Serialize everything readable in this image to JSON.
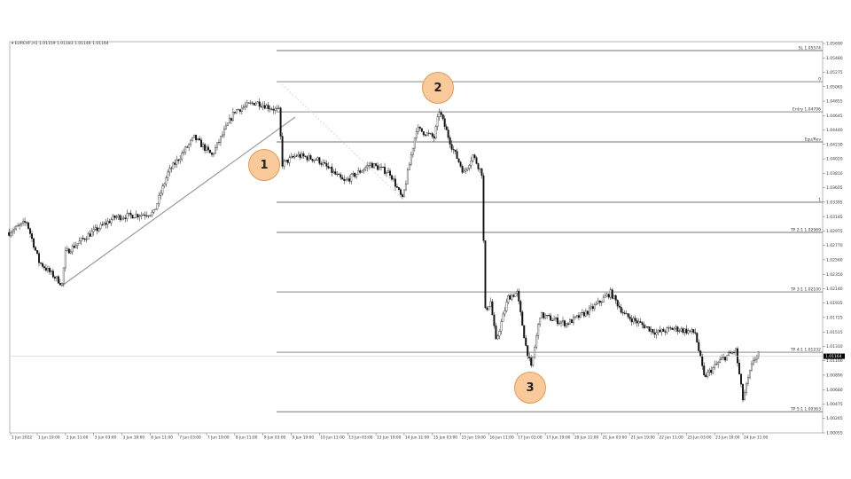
{
  "header": {
    "symbol_caret": "▾",
    "info": "EURCHF,H1  1.01159 1.01183 1.01146 1.01164"
  },
  "markers": [
    {
      "label": "1"
    },
    {
      "label": "2"
    },
    {
      "label": "3"
    }
  ],
  "colors": {
    "candle": "#111111",
    "level_line": "#444444",
    "trendline": "#9a9a9a",
    "marker_fill": "#f9c99a",
    "marker_border": "#e39a55",
    "price_tag_bg": "#000000"
  },
  "chart_data": {
    "type": "candlestick",
    "symbol": "EURCHF",
    "timeframe": "H1",
    "current_price": "1.01164",
    "ylim": [
      1.00055,
      1.0569
    ],
    "y_ticks": [
      "1.05690",
      "1.05480",
      "1.05275",
      "1.05065",
      "1.04855",
      "1.04645",
      "1.04440",
      "1.04230",
      "1.04020",
      "1.03810",
      "1.03605",
      "1.03395",
      "1.03185",
      "1.02975",
      "1.02770",
      "1.02560",
      "1.02350",
      "1.02140",
      "1.01935",
      "1.01725",
      "1.01515",
      "1.01310",
      "1.01100",
      "1.00890",
      "1.00680",
      "1.00475",
      "1.00265",
      "1.00055"
    ],
    "x_ticks": [
      "1 Jun 2022",
      "1 Jun 19:00",
      "2 Jun 11:00",
      "3 Jun 03:00",
      "3 Jun 19:00",
      "6 Jun 11:00",
      "7 Jun 03:00",
      "7 Jun 19:00",
      "8 Jun 11:00",
      "9 Jun 03:00",
      "9 Jun 19:00",
      "10 Jun 11:00",
      "13 Jun 03:00",
      "13 Jun 19:00",
      "14 Jun 11:00",
      "15 Jun 03:00",
      "15 Jun 19:00",
      "16 Jun 11:00",
      "17 Jun 03:00",
      "17 Jun 19:00",
      "20 Jun 11:00",
      "21 Jun 03:00",
      "21 Jun 19:00",
      "22 Jun 11:00",
      "23 Jun 03:00",
      "23 Jun 19:00",
      "24 Jun 11:00"
    ],
    "price_path": [
      [
        "1 Jun 03:00",
        1.02956
      ],
      [
        "1 Jun 13:00",
        1.03109
      ],
      [
        "1 Jun 20:00",
        1.02531
      ],
      [
        "2 Jun 09:00",
        1.0221
      ],
      [
        "2 Jun 11:00",
        1.0266
      ],
      [
        "3 Jun 00:00",
        1.02917
      ],
      [
        "3 Jun 15:00",
        1.03173
      ],
      [
        "6 Jun 13:00",
        1.03238
      ],
      [
        "6 Jun 21:00",
        1.03815
      ],
      [
        "7 Jun 12:00",
        1.04329
      ],
      [
        "7 Jun 22:00",
        1.04072
      ],
      [
        "8 Jun 11:00",
        1.04714
      ],
      [
        "8 Jun 23:00",
        1.04843
      ],
      [
        "9 Jun 12:00",
        1.04714
      ],
      [
        "9 Jun 14:00",
        1.03944
      ],
      [
        "9 Jun 22:00",
        1.04072
      ],
      [
        "10 Jun 10:00",
        1.04008
      ],
      [
        "13 Jun 01:00",
        1.03687
      ],
      [
        "13 Jun 16:00",
        1.03944
      ],
      [
        "14 Jun 03:00",
        1.03815
      ],
      [
        "14 Jun 10:00",
        1.0343
      ],
      [
        "14 Jun 18:00",
        1.04457
      ],
      [
        "15 Jun 04:00",
        1.04329
      ],
      [
        "15 Jun 07:00",
        1.04714
      ],
      [
        "15 Jun 14:00",
        1.04201
      ],
      [
        "15 Jun 21:00",
        1.03815
      ],
      [
        "16 Jun 02:00",
        1.04072
      ],
      [
        "16 Jun 07:00",
        1.03815
      ],
      [
        "16 Jun 09:00",
        1.01825
      ],
      [
        "16 Jun 12:00",
        1.01954
      ],
      [
        "16 Jun 15:00",
        1.01376
      ],
      [
        "16 Jun 22:00",
        1.02018
      ],
      [
        "17 Jun 03:00",
        1.02082
      ],
      [
        "17 Jun 08:00",
        1.01312
      ],
      [
        "17 Jun 11:00",
        1.00991
      ],
      [
        "17 Jun 16:00",
        1.01761
      ],
      [
        "20 Jun 07:00",
        1.01633
      ],
      [
        "20 Jun 20:00",
        1.01825
      ],
      [
        "21 Jun 08:00",
        1.02082
      ],
      [
        "21 Jun 16:00",
        1.01761
      ],
      [
        "22 Jun 10:00",
        1.01504
      ],
      [
        "22 Jun 20:00",
        1.01568
      ],
      [
        "23 Jun 08:00",
        1.01504
      ],
      [
        "23 Jun 13:00",
        1.00862
      ],
      [
        "23 Jun 23:00",
        1.01119
      ],
      [
        "24 Jun 07:00",
        1.01247
      ],
      [
        "24 Jun 11:00",
        1.00541
      ],
      [
        "24 Jun 17:00",
        1.01119
      ],
      [
        "24 Jun 20:00",
        1.01183
      ]
    ],
    "levels": [
      {
        "label": "SL 1.05574",
        "price": 1.05587
      },
      {
        "label": "0",
        "price": 1.05137
      },
      {
        "label": "Entry 1.04706",
        "price": 1.04701
      },
      {
        "label": "Equ/Rev",
        "price": 1.04265
      },
      {
        "label": "1",
        "price": 1.03392
      },
      {
        "label": "TP 2:1 1.02969",
        "price": 1.02956
      },
      {
        "label": "TP 3:1 1.02100",
        "price": 1.02095
      },
      {
        "label": "TP 4:1 1.01232",
        "price": 1.01222
      },
      {
        "label": "TP 5:1 1.00363",
        "price": 1.00361
      }
    ]
  }
}
